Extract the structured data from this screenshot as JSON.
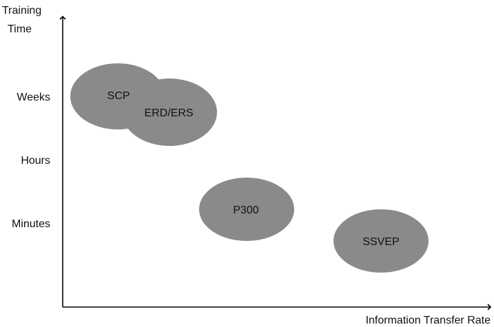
{
  "diagram": {
    "y_axis": {
      "title_line1": "Training",
      "title_line2": "Time",
      "levels": [
        "Weeks",
        "Hours",
        "Minutes"
      ]
    },
    "x_axis": {
      "title": "Information Transfer Rate"
    },
    "paradigms": [
      {
        "label": "SCP"
      },
      {
        "label": "ERD/ERS"
      },
      {
        "label": "P300"
      },
      {
        "label": "SSVEP"
      }
    ],
    "colors": {
      "ellipse_fill": "#8a8a8a",
      "axis": "#000000",
      "text": "#111111"
    }
  }
}
